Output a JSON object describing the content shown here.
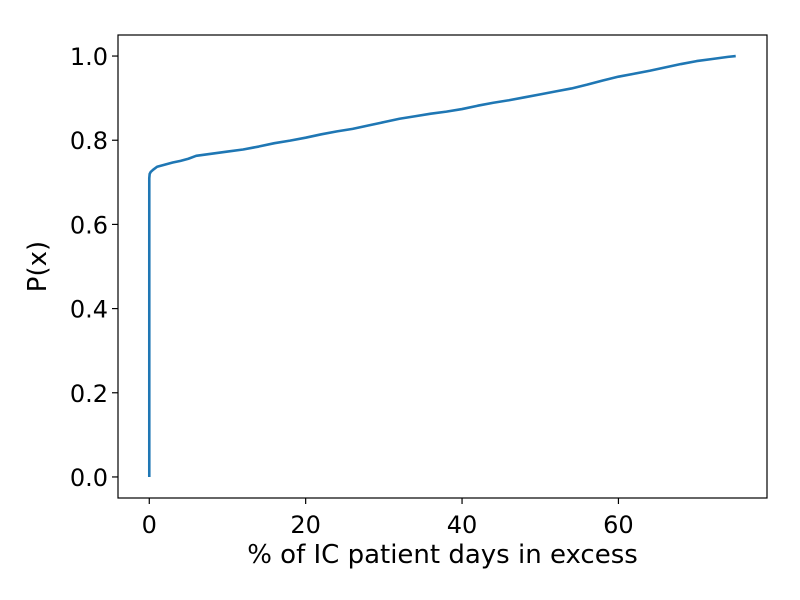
{
  "chart_data": {
    "type": "line",
    "title": "",
    "xlabel": "% of IC patient days in excess",
    "ylabel": "P(x)",
    "xlim": [
      -4,
      79
    ],
    "ylim": [
      -0.05,
      1.05
    ],
    "xticks": [
      0,
      20,
      40,
      60
    ],
    "yticks": [
      0.0,
      0.2,
      0.4,
      0.6,
      0.8,
      1.0
    ],
    "xtick_labels": [
      "0",
      "20",
      "40",
      "60"
    ],
    "ytick_labels": [
      "0.0",
      "0.2",
      "0.4",
      "0.6",
      "0.8",
      "1.0"
    ],
    "grid": false,
    "series": [
      {
        "color": "#1f77b4",
        "x": [
          0,
          0,
          0.05,
          0.2,
          0.5,
          1,
          2,
          3,
          4,
          5,
          6,
          8,
          10,
          12,
          14,
          16,
          18,
          20,
          22,
          24,
          26,
          28,
          30,
          32,
          34,
          36,
          38,
          40,
          42,
          44,
          46,
          48,
          50,
          52,
          54,
          56,
          58,
          60,
          62,
          64,
          66,
          68,
          70,
          72,
          74,
          75
        ],
        "y": [
          0.0,
          0.71,
          0.72,
          0.725,
          0.73,
          0.737,
          0.742,
          0.747,
          0.751,
          0.756,
          0.763,
          0.768,
          0.773,
          0.778,
          0.785,
          0.793,
          0.799,
          0.806,
          0.814,
          0.821,
          0.827,
          0.835,
          0.843,
          0.851,
          0.857,
          0.863,
          0.868,
          0.874,
          0.882,
          0.889,
          0.895,
          0.902,
          0.909,
          0.916,
          0.923,
          0.932,
          0.942,
          0.951,
          0.958,
          0.965,
          0.973,
          0.981,
          0.988,
          0.993,
          0.998,
          1.0
        ]
      }
    ]
  }
}
